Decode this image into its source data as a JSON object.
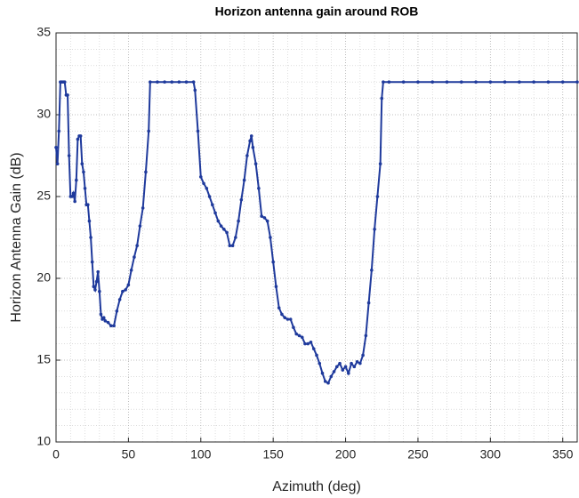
{
  "chart_data": {
    "type": "line",
    "title": "Horizon antenna gain around ROB",
    "x_label": "Azimuth (deg)",
    "y_label": "Horizon Antenna Gain (dB)",
    "xlim": [
      0,
      360
    ],
    "xticks": [
      0,
      50,
      100,
      150,
      200,
      250,
      300,
      350
    ],
    "ylim": [
      10,
      35
    ],
    "yticks": [
      10,
      15,
      20,
      25,
      30,
      35
    ],
    "grid": true,
    "minor_grid": true,
    "series": [
      {
        "name": "Horizon antenna gain",
        "color": "#1f3a9c",
        "x": [
          0,
          1,
          2,
          3,
          4,
          5,
          6,
          7,
          8,
          9,
          10,
          11,
          12,
          13,
          14,
          15,
          16,
          17,
          18,
          19,
          20,
          21,
          22,
          23,
          24,
          25,
          26,
          27,
          28,
          29,
          30,
          31,
          32,
          33,
          34,
          36,
          38,
          40,
          42,
          44,
          46,
          48,
          50,
          52,
          54,
          56,
          58,
          60,
          62,
          64,
          65,
          70,
          75,
          80,
          85,
          90,
          95,
          96,
          98,
          100,
          102,
          104,
          106,
          108,
          110,
          112,
          114,
          116,
          118,
          120,
          122,
          124,
          126,
          128,
          130,
          132,
          134,
          135,
          136,
          138,
          140,
          142,
          144,
          146,
          148,
          150,
          152,
          154,
          156,
          158,
          160,
          162,
          164,
          166,
          168,
          170,
          172,
          174,
          176,
          178,
          180,
          182,
          184,
          186,
          188,
          190,
          192,
          194,
          196,
          198,
          200,
          202,
          204,
          206,
          208,
          210,
          212,
          214,
          216,
          218,
          220,
          222,
          224,
          225,
          226,
          230,
          240,
          250,
          260,
          270,
          280,
          290,
          300,
          310,
          320,
          330,
          340,
          350,
          360
        ],
        "values": [
          28,
          27,
          29,
          32,
          32,
          32,
          32,
          31.2,
          31.2,
          27.5,
          25,
          25,
          25.2,
          24.7,
          26,
          28.5,
          28.7,
          28.7,
          27,
          26.5,
          25.5,
          24.5,
          24.5,
          23.5,
          22.5,
          21,
          19.5,
          19.3,
          19.8,
          20.4,
          19.2,
          17.8,
          17.5,
          17.6,
          17.4,
          17.3,
          17.1,
          17.1,
          18,
          18.7,
          19.2,
          19.3,
          19.6,
          20.5,
          21.3,
          22,
          23.2,
          24.3,
          26.5,
          29,
          32,
          32,
          32,
          32,
          32,
          32,
          32,
          31.5,
          29,
          26.2,
          25.8,
          25.5,
          25,
          24.5,
          24,
          23.5,
          23.2,
          23,
          22.8,
          22,
          22,
          22.5,
          23.5,
          24.8,
          26,
          27.5,
          28.4,
          28.7,
          28,
          27,
          25.5,
          23.8,
          23.7,
          23.5,
          22.5,
          21,
          19.5,
          18.2,
          17.8,
          17.6,
          17.5,
          17.5,
          17,
          16.6,
          16.5,
          16.4,
          16,
          16,
          16.1,
          15.7,
          15.3,
          14.8,
          14.2,
          13.7,
          13.6,
          14,
          14.3,
          14.6,
          14.8,
          14.4,
          14.6,
          14.2,
          14.8,
          14.6,
          14.9,
          14.8,
          15.3,
          16.5,
          18.5,
          20.5,
          23,
          25,
          27,
          31,
          32,
          32,
          32,
          32,
          32,
          32,
          32,
          32,
          32,
          32,
          32,
          32,
          32,
          32,
          32
        ]
      }
    ]
  }
}
